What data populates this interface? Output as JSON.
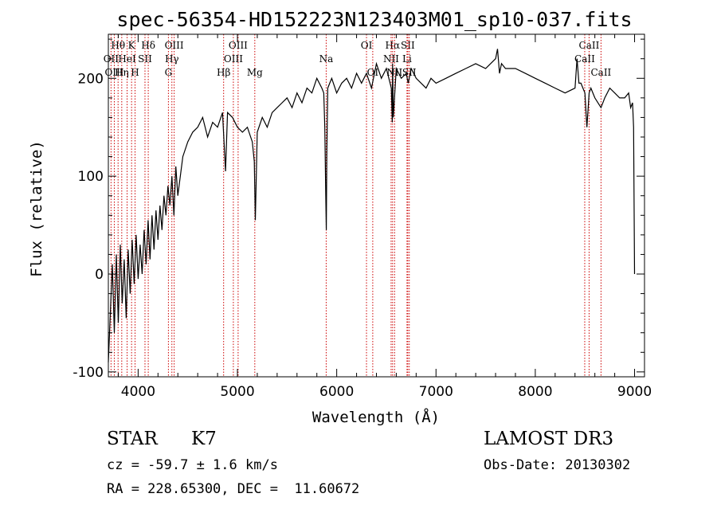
{
  "chart_data": {
    "type": "line",
    "title": "spec-56354-HD152223N123403M01_sp10-037.fits",
    "xlabel": "Wavelength (Å)",
    "ylabel": "Flux (relative)",
    "xlim": [
      3700,
      9100
    ],
    "ylim": [
      -105,
      245
    ],
    "xticks": [
      4000,
      5000,
      6000,
      7000,
      8000,
      9000
    ],
    "yticks": [
      -100,
      0,
      100,
      200
    ],
    "series": [
      {
        "name": "flux",
        "x": [
          3700,
          3720,
          3740,
          3760,
          3780,
          3800,
          3820,
          3840,
          3860,
          3880,
          3900,
          3920,
          3940,
          3960,
          3980,
          4000,
          4020,
          4040,
          4060,
          4080,
          4100,
          4120,
          4140,
          4160,
          4180,
          4200,
          4220,
          4240,
          4260,
          4280,
          4300,
          4320,
          4340,
          4360,
          4380,
          4400,
          4450,
          4500,
          4550,
          4600,
          4650,
          4700,
          4750,
          4800,
          4850,
          4880,
          4900,
          4950,
          5000,
          5050,
          5100,
          5150,
          5170,
          5180,
          5200,
          5250,
          5300,
          5350,
          5400,
          5450,
          5500,
          5550,
          5600,
          5650,
          5700,
          5750,
          5800,
          5850,
          5870,
          5880,
          5890,
          5895,
          5900,
          5910,
          5930,
          5950,
          6000,
          6050,
          6100,
          6150,
          6200,
          6250,
          6300,
          6350,
          6400,
          6450,
          6500,
          6550,
          6560,
          6563,
          6570,
          6600,
          6650,
          6700,
          6720,
          6750,
          6800,
          6850,
          6900,
          6950,
          7000,
          7100,
          7200,
          7300,
          7400,
          7500,
          7600,
          7620,
          7640,
          7660,
          7700,
          7800,
          7900,
          8000,
          8100,
          8200,
          8300,
          8400,
          8420,
          8440,
          8460,
          8480,
          8500,
          8520,
          8542,
          8560,
          8600,
          8662,
          8700,
          8750,
          8800,
          8850,
          8900,
          8940,
          8960,
          8980,
          8990,
          9000
        ],
        "y": [
          -90,
          -40,
          10,
          -60,
          20,
          -50,
          30,
          -30,
          15,
          -45,
          25,
          -20,
          35,
          -10,
          40,
          -5,
          30,
          0,
          45,
          10,
          55,
          15,
          60,
          25,
          65,
          35,
          70,
          45,
          80,
          60,
          90,
          70,
          100,
          60,
          110,
          80,
          120,
          135,
          145,
          150,
          160,
          140,
          155,
          150,
          165,
          105,
          165,
          160,
          150,
          145,
          150,
          135,
          115,
          55,
          145,
          160,
          150,
          165,
          170,
          175,
          180,
          170,
          185,
          175,
          190,
          185,
          200,
          190,
          185,
          150,
          80,
          45,
          120,
          190,
          195,
          200,
          185,
          195,
          200,
          190,
          205,
          195,
          205,
          190,
          215,
          200,
          210,
          190,
          155,
          215,
          160,
          210,
          200,
          205,
          195,
          210,
          200,
          195,
          190,
          200,
          195,
          200,
          205,
          210,
          215,
          210,
          220,
          230,
          205,
          215,
          210,
          210,
          205,
          200,
          195,
          190,
          185,
          190,
          220,
          195,
          195,
          190,
          185,
          150,
          185,
          190,
          180,
          170,
          180,
          190,
          185,
          180,
          180,
          185,
          170,
          175,
          150,
          0
        ]
      }
    ],
    "lines": [
      {
        "name": "Hθ",
        "x": 3798,
        "label_row": 0
      },
      {
        "name": "OII",
        "x": 3727,
        "label_row": 1
      },
      {
        "name": "OIII",
        "x": 3760,
        "label_row": 2
      },
      {
        "name": "K",
        "x": 3934,
        "label_row": 0
      },
      {
        "name": "HeI",
        "x": 3889,
        "label_row": 1
      },
      {
        "name": "Hη",
        "x": 3835,
        "label_row": 2
      },
      {
        "name": "Hδ",
        "x": 4102,
        "label_row": 0
      },
      {
        "name": "SII",
        "x": 4069,
        "label_row": 1
      },
      {
        "name": "H",
        "x": 3969,
        "label_row": 2
      },
      {
        "name": "OIII",
        "x": 4363,
        "label_row": 0
      },
      {
        "name": "Hγ",
        "x": 4340,
        "label_row": 1
      },
      {
        "name": "G",
        "x": 4305,
        "label_row": 2
      },
      {
        "name": "OIII",
        "x": 5007,
        "label_row": 0
      },
      {
        "name": "OIII",
        "x": 4959,
        "label_row": 1
      },
      {
        "name": "Hβ",
        "x": 4861,
        "label_row": 2
      },
      {
        "name": "Mg",
        "x": 5175,
        "label_row": 2
      },
      {
        "name": "Na",
        "x": 5894,
        "label_row": 1
      },
      {
        "name": "OI",
        "x": 6300,
        "label_row": 0
      },
      {
        "name": "OI",
        "x": 6363,
        "label_row": 2
      },
      {
        "name": "Hα",
        "x": 6563,
        "label_row": 0
      },
      {
        "name": "NII",
        "x": 6548,
        "label_row": 1
      },
      {
        "name": "NII",
        "x": 6583,
        "label_row": 2
      },
      {
        "name": "SII",
        "x": 6716,
        "label_row": 0
      },
      {
        "name": "Li",
        "x": 6708,
        "label_row": 1
      },
      {
        "name": "SII",
        "x": 6731,
        "label_row": 2
      },
      {
        "name": "CaII",
        "x": 8542,
        "label_row": 0
      },
      {
        "name": "CaII",
        "x": 8498,
        "label_row": 1
      },
      {
        "name": "CaII",
        "x": 8662,
        "label_row": 2
      }
    ]
  },
  "info": {
    "object_class": "STAR",
    "subclass": "K7",
    "survey": "LAMOST DR3",
    "cz": "cz = -59.7 ± 1.6 km/s",
    "obs_date": "Obs-Date: 20130302",
    "coords": "RA = 228.65300, DEC =  11.60672"
  },
  "colors": {
    "line_marker": "#cc0000",
    "spectrum": "#000000"
  }
}
